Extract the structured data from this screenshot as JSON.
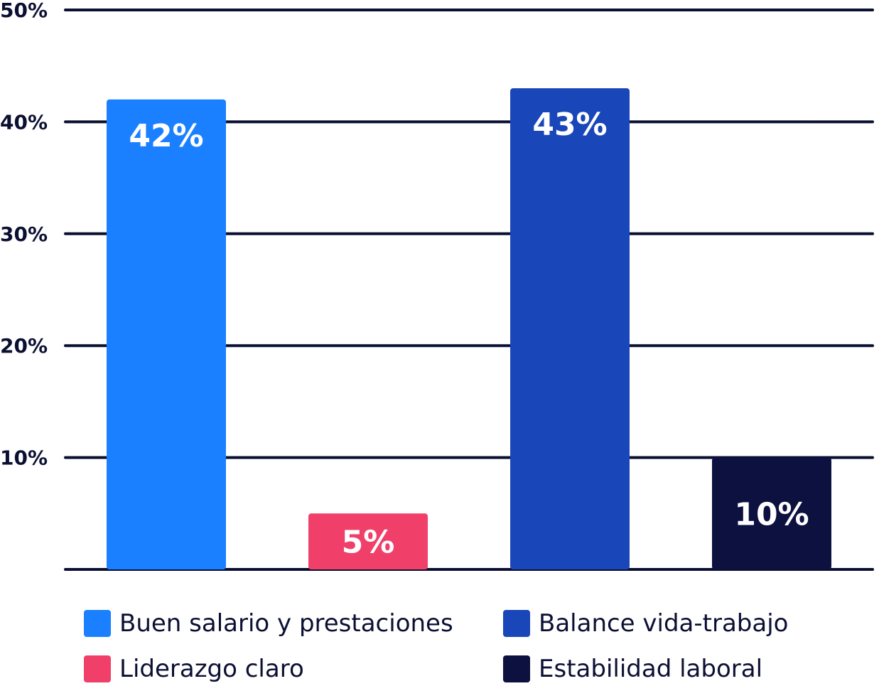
{
  "chart_data": {
    "type": "bar",
    "categories": [
      "Buen salario y prestaciones",
      "Liderazgo claro",
      "Balance vida-trabajo",
      "Estabilidad laboral"
    ],
    "values": [
      42,
      5,
      43,
      10
    ],
    "value_labels": [
      "42%",
      "5%",
      "43%",
      "10%"
    ],
    "colors": [
      "#1a80ff",
      "#f0406a",
      "#1946b8",
      "#0c1140"
    ],
    "ylim": [
      0,
      50
    ],
    "yticks": [
      {
        "value": 10,
        "label": "10%"
      },
      {
        "value": 20,
        "label": "20%"
      },
      {
        "value": 30,
        "label": "30%"
      },
      {
        "value": 40,
        "label": "40%"
      },
      {
        "value": 50,
        "label": "50%"
      }
    ],
    "grid": true,
    "legend_position": "bottom",
    "title": "",
    "xlabel": "",
    "ylabel": ""
  },
  "legend": {
    "items": [
      {
        "label": "Buen salario y prestaciones",
        "color": "#1a80ff"
      },
      {
        "label": "Liderazgo claro",
        "color": "#f0406a"
      },
      {
        "label": "Balance vida-trabajo",
        "color": "#1946b8"
      },
      {
        "label": "Estabilidad laboral",
        "color": "#0c1140"
      }
    ]
  }
}
